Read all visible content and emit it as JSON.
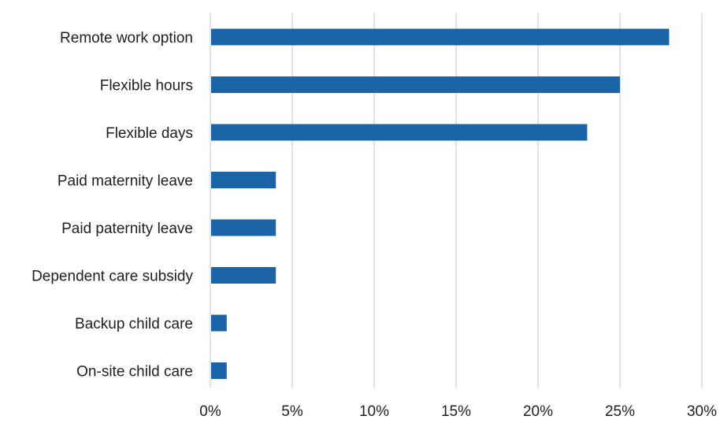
{
  "chart_data": {
    "type": "bar",
    "orientation": "horizontal",
    "title": "",
    "xlabel": "",
    "ylabel": "",
    "categories": [
      "Remote work option",
      "Flexible hours",
      "Flexible days",
      "Paid maternity leave",
      "Paid paternity leave",
      "Dependent care subsidy",
      "Backup child care",
      "On-site child care"
    ],
    "values": [
      28,
      25,
      23,
      4,
      4,
      4,
      1,
      1
    ],
    "value_unit": "%",
    "xlim": [
      0,
      30
    ],
    "xticks": [
      0,
      5,
      10,
      15,
      20,
      25,
      30
    ],
    "xtick_labels": [
      "0%",
      "5%",
      "10%",
      "15%",
      "20%",
      "25%",
      "30%"
    ],
    "grid": true,
    "legend": "none",
    "bar_color": "#1c64a8"
  }
}
